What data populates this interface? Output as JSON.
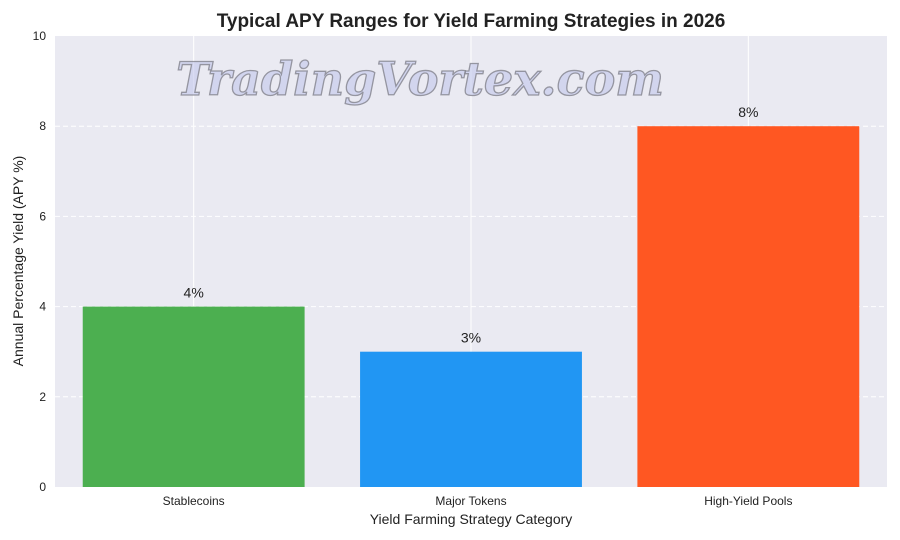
{
  "chart_data": {
    "type": "bar",
    "title": "Typical APY Ranges for Yield Farming Strategies in 2026",
    "xlabel": "Yield Farming Strategy Category",
    "ylabel": "Annual Percentage Yield (APY %)",
    "categories": [
      "Stablecoins",
      "Major Tokens",
      "High-Yield Pools"
    ],
    "values": [
      4,
      3,
      8
    ],
    "data_labels": [
      "4%",
      "3%",
      "8%"
    ],
    "colors": [
      "#4caf50",
      "#2196f3",
      "#ff5722"
    ],
    "ylim": [
      0,
      10
    ],
    "yticks": [
      "0",
      "2",
      "4",
      "6",
      "8",
      "10"
    ],
    "grid": true,
    "background": "#eaeaf2"
  },
  "watermark": "TradingVortex.com"
}
